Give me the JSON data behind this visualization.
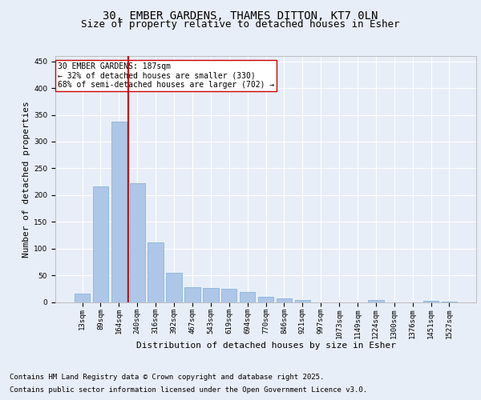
{
  "title_line1": "30, EMBER GARDENS, THAMES DITTON, KT7 0LN",
  "title_line2": "Size of property relative to detached houses in Esher",
  "xlabel": "Distribution of detached houses by size in Esher",
  "ylabel": "Number of detached properties",
  "categories": [
    "13sqm",
    "89sqm",
    "164sqm",
    "240sqm",
    "316sqm",
    "392sqm",
    "467sqm",
    "543sqm",
    "619sqm",
    "694sqm",
    "770sqm",
    "846sqm",
    "921sqm",
    "997sqm",
    "1073sqm",
    "1149sqm",
    "1224sqm",
    "1300sqm",
    "1376sqm",
    "1451sqm",
    "1527sqm"
  ],
  "values": [
    15,
    216,
    338,
    222,
    112,
    54,
    27,
    26,
    25,
    19,
    10,
    6,
    4,
    0,
    0,
    0,
    4,
    0,
    0,
    2,
    1
  ],
  "bar_color": "#aec6e8",
  "bar_edge_color": "#7aadd4",
  "vline_x": 2.5,
  "vline_color": "#cc0000",
  "annotation_text": "30 EMBER GARDENS: 187sqm\n← 32% of detached houses are smaller (330)\n68% of semi-detached houses are larger (702) →",
  "annotation_box_color": "#ffffff",
  "annotation_box_edge": "#cc0000",
  "bg_color": "#e8eef7",
  "plot_bg_color": "#e8eef7",
  "grid_color": "#ffffff",
  "ylim": [
    0,
    460
  ],
  "yticks": [
    0,
    50,
    100,
    150,
    200,
    250,
    300,
    350,
    400,
    450
  ],
  "title_fontsize": 10,
  "subtitle_fontsize": 9,
  "xlabel_fontsize": 8,
  "ylabel_fontsize": 8,
  "tick_fontsize": 6.5,
  "annotation_fontsize": 7,
  "footnote1": "Contains HM Land Registry data © Crown copyright and database right 2025.",
  "footnote2": "Contains public sector information licensed under the Open Government Licence v3.0.",
  "footnote_fontsize": 6.5
}
